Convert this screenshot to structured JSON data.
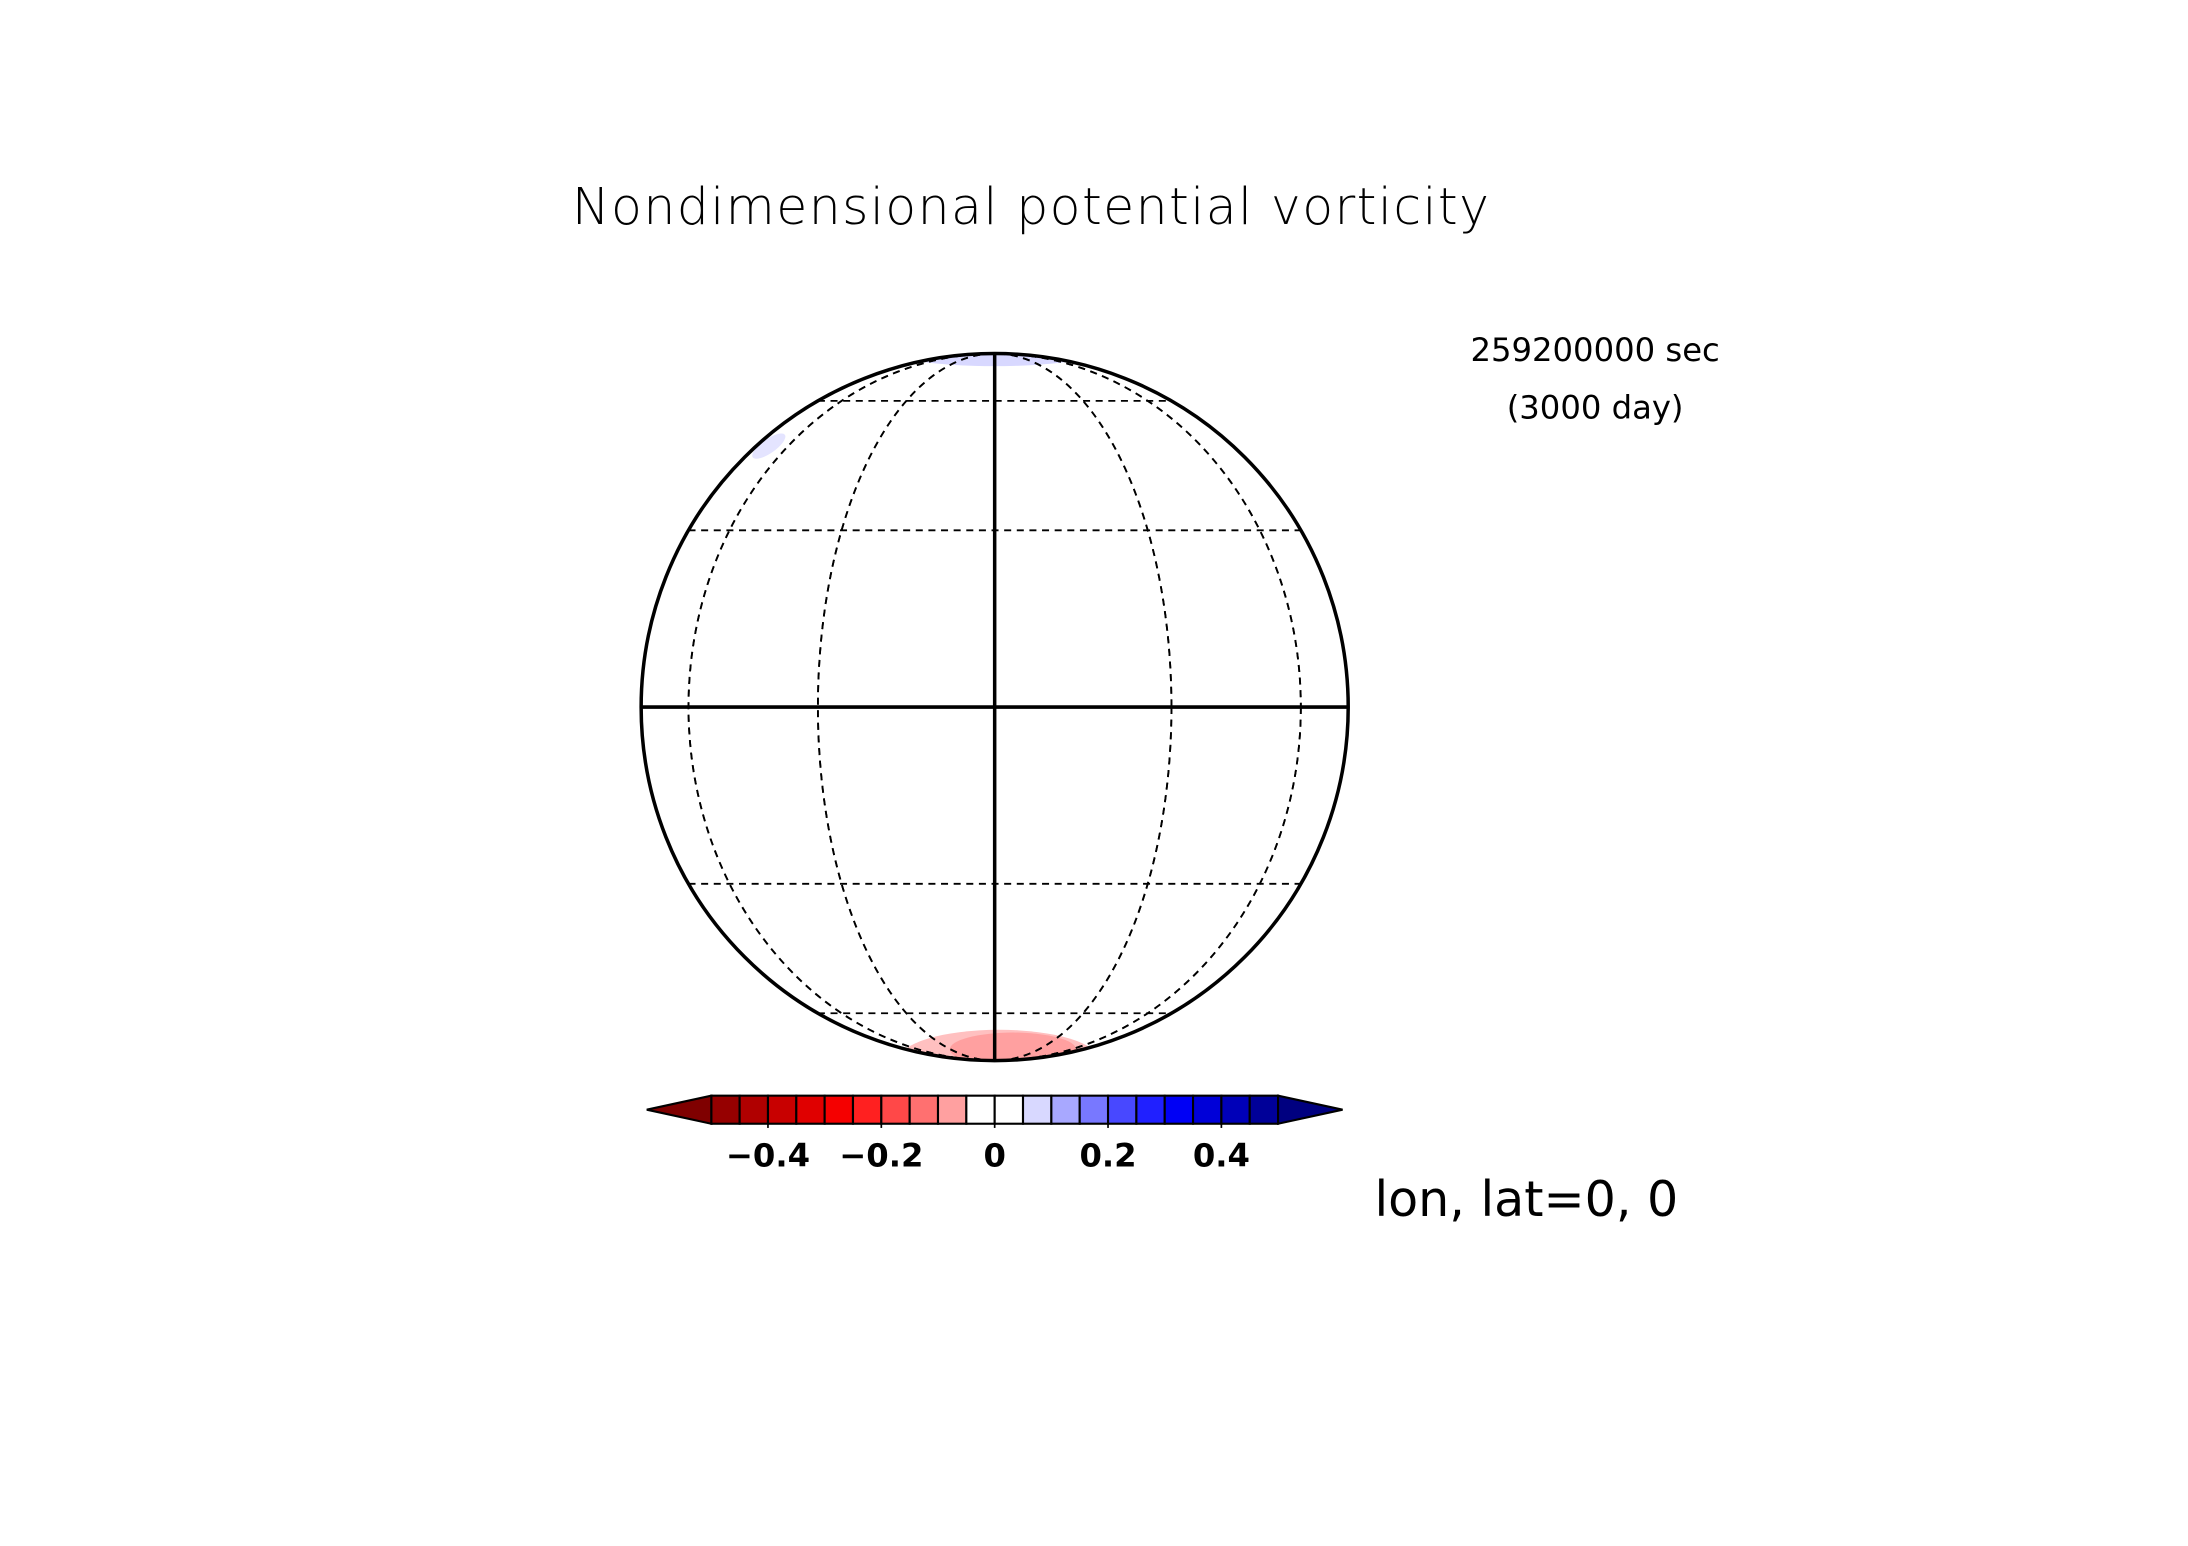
{
  "chart_data": {
    "type": "map",
    "title": "Nondimensional potential vorticity",
    "annotations": [
      "259200000 sec",
      "(3000 day)",
      "lon, lat=0, 0"
    ],
    "colorbar": {
      "xlim": [
        -0.5,
        0.5
      ],
      "levels": [
        -0.5,
        -0.45,
        -0.4,
        -0.35,
        -0.3,
        -0.25,
        -0.2,
        -0.15,
        -0.1,
        -0.05,
        0,
        0.05,
        0.1,
        0.15,
        0.2,
        0.25,
        0.3,
        0.35,
        0.4,
        0.45,
        0.5
      ],
      "colors": [
        "#960000",
        "#b00000",
        "#c80000",
        "#e00000",
        "#f50000",
        "#ff2020",
        "#ff4848",
        "#ff7070",
        "#ffa0a0",
        "#ffffff",
        "#ffffff",
        "#d8d8ff",
        "#a8a8ff",
        "#7878ff",
        "#4848ff",
        "#2020ff",
        "#0000f5",
        "#0000d8",
        "#0000b8",
        "#000098"
      ],
      "under_color": "#7f0000",
      "over_color": "#000080",
      "ticks": [
        {
          "value": -0.4,
          "label": "−0.4"
        },
        {
          "value": -0.2,
          "label": "−0.2"
        },
        0,
        0.2,
        0.4
      ]
    }
  }
}
